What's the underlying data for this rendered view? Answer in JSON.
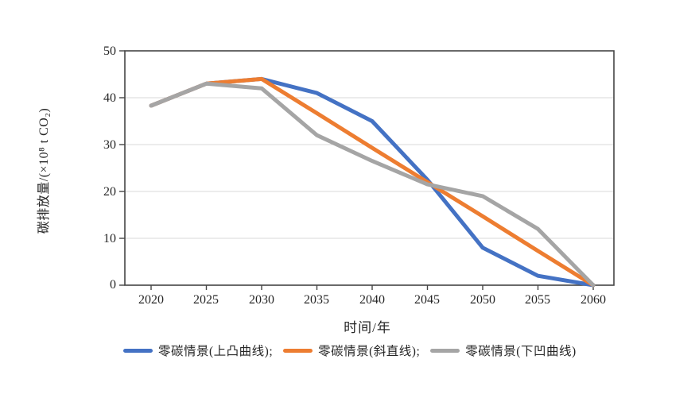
{
  "chart_data": {
    "type": "line",
    "title": "",
    "xlabel": "时间/年",
    "ylabel": "碳排放量/(×10⁸ t CO₂)",
    "categories": [
      2020,
      2025,
      2030,
      2035,
      2040,
      2045,
      2050,
      2055,
      2060
    ],
    "yticks": [
      0,
      10,
      20,
      30,
      40,
      50
    ],
    "xlim": [
      2020,
      2060
    ],
    "ylim": [
      0,
      50
    ],
    "grid": "horizontal-gridlines",
    "legend_position": "bottom",
    "series": [
      {
        "name": "零碳情景(上凸曲线)",
        "legend_label": "零碳情景(上凸曲线);",
        "color": "#4472C4",
        "values": [
          38.3,
          43,
          44,
          41,
          35,
          22.5,
          8,
          2,
          0
        ]
      },
      {
        "name": "零碳情景(斜直线)",
        "legend_label": "零碳情景(斜直线);",
        "color": "#ED7D31",
        "values": [
          38.3,
          43,
          44,
          36.7,
          29.3,
          22,
          14.7,
          7.3,
          0
        ]
      },
      {
        "name": "零碳情景(下凹曲线)",
        "legend_label": "零碳情景(下凹曲线)",
        "color": "#A5A5A5",
        "values": [
          38.3,
          43,
          42,
          32,
          26.5,
          21.5,
          19,
          12,
          0
        ]
      }
    ],
    "colors": {
      "axis_border": "#454545",
      "gridline": "#D9D9D9",
      "text": "#262626"
    }
  }
}
